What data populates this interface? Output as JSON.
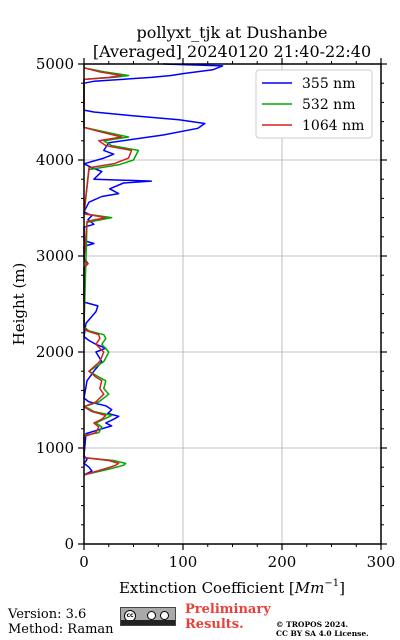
{
  "chart_data": {
    "type": "line",
    "title_line1": "pollyxt_tjk at Dushanbe",
    "title_line2": "[Averaged] 20240120 21:40-22:40",
    "xlabel": "Extinction Coefficient [",
    "xlabel_unit": "Mm",
    "xlabel_exp": "−1",
    "xlabel_end": "]",
    "ylabel": "Height (m)",
    "xlim": [
      0,
      300
    ],
    "ylim": [
      0,
      5000
    ],
    "xticks": [
      0,
      100,
      200,
      300
    ],
    "yticks": [
      0,
      1000,
      2000,
      3000,
      4000,
      5000
    ],
    "grid": true,
    "legend_position": "top-right",
    "series": [
      {
        "name": "355 nm",
        "color": "#0000ff",
        "points": [
          [
            0,
            720
          ],
          [
            8,
            760
          ],
          [
            5,
            800
          ],
          [
            0,
            840
          ],
          [
            3,
            880
          ],
          [
            0,
            920
          ],
          [
            2,
            1150
          ],
          [
            18,
            1200
          ],
          [
            28,
            1230
          ],
          [
            22,
            1260
          ],
          [
            30,
            1300
          ],
          [
            35,
            1330
          ],
          [
            24,
            1360
          ],
          [
            28,
            1400
          ],
          [
            22,
            1440
          ],
          [
            5,
            1480
          ],
          [
            0,
            1520
          ],
          [
            3,
            1700
          ],
          [
            10,
            1800
          ],
          [
            18,
            1900
          ],
          [
            12,
            2000
          ],
          [
            22,
            2040
          ],
          [
            12,
            2080
          ],
          [
            5,
            2120
          ],
          [
            0,
            2160
          ],
          [
            2,
            2300
          ],
          [
            12,
            2420
          ],
          [
            14,
            2480
          ],
          [
            0,
            2520
          ],
          [
            0,
            2880
          ],
          [
            4,
            2920
          ],
          [
            0,
            2980
          ],
          [
            0,
            3100
          ],
          [
            10,
            3130
          ],
          [
            0,
            3160
          ],
          [
            0,
            3300
          ],
          [
            10,
            3330
          ],
          [
            4,
            3380
          ],
          [
            8,
            3420
          ],
          [
            0,
            3460
          ],
          [
            5,
            3560
          ],
          [
            18,
            3620
          ],
          [
            35,
            3650
          ],
          [
            26,
            3700
          ],
          [
            40,
            3760
          ],
          [
            68,
            3780
          ],
          [
            10,
            3800
          ],
          [
            18,
            3880
          ],
          [
            8,
            3920
          ],
          [
            0,
            3960
          ],
          [
            20,
            4020
          ],
          [
            30,
            4060
          ],
          [
            20,
            4100
          ],
          [
            25,
            4180
          ],
          [
            80,
            4260
          ],
          [
            115,
            4330
          ],
          [
            122,
            4380
          ],
          [
            96,
            4420
          ],
          [
            40,
            4470
          ],
          [
            10,
            4500
          ],
          [
            0,
            4520
          ],
          [
            0,
            4800
          ],
          [
            10,
            4820
          ],
          [
            68,
            4860
          ],
          [
            88,
            4880
          ],
          [
            100,
            4900
          ],
          [
            130,
            4940
          ],
          [
            140,
            4980
          ],
          [
            80,
            5000
          ]
        ]
      },
      {
        "name": "532 nm",
        "color": "#00aa00",
        "points": [
          [
            0,
            720
          ],
          [
            25,
            780
          ],
          [
            40,
            820
          ],
          [
            42,
            840
          ],
          [
            30,
            870
          ],
          [
            0,
            900
          ],
          [
            0,
            1130
          ],
          [
            15,
            1160
          ],
          [
            18,
            1220
          ],
          [
            12,
            1260
          ],
          [
            20,
            1300
          ],
          [
            28,
            1340
          ],
          [
            10,
            1380
          ],
          [
            5,
            1410
          ],
          [
            0,
            1430
          ],
          [
            15,
            1480
          ],
          [
            25,
            1560
          ],
          [
            20,
            1620
          ],
          [
            22,
            1700
          ],
          [
            15,
            1740
          ],
          [
            5,
            1800
          ],
          [
            20,
            1900
          ],
          [
            25,
            2000
          ],
          [
            18,
            2080
          ],
          [
            22,
            2140
          ],
          [
            20,
            2180
          ],
          [
            5,
            2220
          ],
          [
            0,
            2260
          ],
          [
            3,
            3350
          ],
          [
            28,
            3400
          ],
          [
            0,
            3440
          ],
          [
            5,
            3900
          ],
          [
            35,
            3950
          ],
          [
            50,
            4000
          ],
          [
            55,
            4100
          ],
          [
            28,
            4150
          ],
          [
            20,
            4200
          ],
          [
            45,
            4240
          ],
          [
            18,
            4300
          ],
          [
            0,
            4340
          ],
          [
            0,
            4840
          ],
          [
            30,
            4860
          ],
          [
            45,
            4880
          ],
          [
            20,
            4920
          ],
          [
            0,
            4960
          ]
        ]
      },
      {
        "name": "1064 nm",
        "color": "#d42020",
        "points": [
          [
            0,
            720
          ],
          [
            20,
            780
          ],
          [
            32,
            820
          ],
          [
            35,
            840
          ],
          [
            25,
            870
          ],
          [
            0,
            900
          ],
          [
            0,
            1120
          ],
          [
            12,
            1160
          ],
          [
            15,
            1220
          ],
          [
            10,
            1260
          ],
          [
            18,
            1300
          ],
          [
            22,
            1340
          ],
          [
            8,
            1380
          ],
          [
            3,
            1410
          ],
          [
            0,
            1430
          ],
          [
            12,
            1480
          ],
          [
            20,
            1560
          ],
          [
            16,
            1620
          ],
          [
            18,
            1700
          ],
          [
            12,
            1740
          ],
          [
            5,
            1800
          ],
          [
            16,
            1900
          ],
          [
            20,
            2000
          ],
          [
            12,
            2080
          ],
          [
            16,
            2140
          ],
          [
            15,
            2180
          ],
          [
            3,
            2220
          ],
          [
            0,
            2260
          ],
          [
            0,
            2880
          ],
          [
            4,
            2920
          ],
          [
            0,
            2950
          ],
          [
            3,
            3360
          ],
          [
            22,
            3400
          ],
          [
            0,
            3440
          ],
          [
            5,
            3920
          ],
          [
            30,
            3960
          ],
          [
            45,
            4020
          ],
          [
            48,
            4100
          ],
          [
            22,
            4150
          ],
          [
            15,
            4200
          ],
          [
            38,
            4240
          ],
          [
            14,
            4300
          ],
          [
            0,
            4340
          ],
          [
            0,
            4840
          ],
          [
            25,
            4860
          ],
          [
            38,
            4880
          ],
          [
            15,
            4920
          ],
          [
            0,
            4960
          ]
        ]
      }
    ]
  },
  "footer": {
    "version": "Version: 3.6",
    "method": "Method: Raman",
    "preliminary_line1": "Preliminary",
    "preliminary_line2": "Results.",
    "copyright_line1": "© TROPOS 2024.",
    "copyright_line2": "CC BY SA 4.0 License.",
    "license_badge": "cc-by-sa-icon"
  }
}
